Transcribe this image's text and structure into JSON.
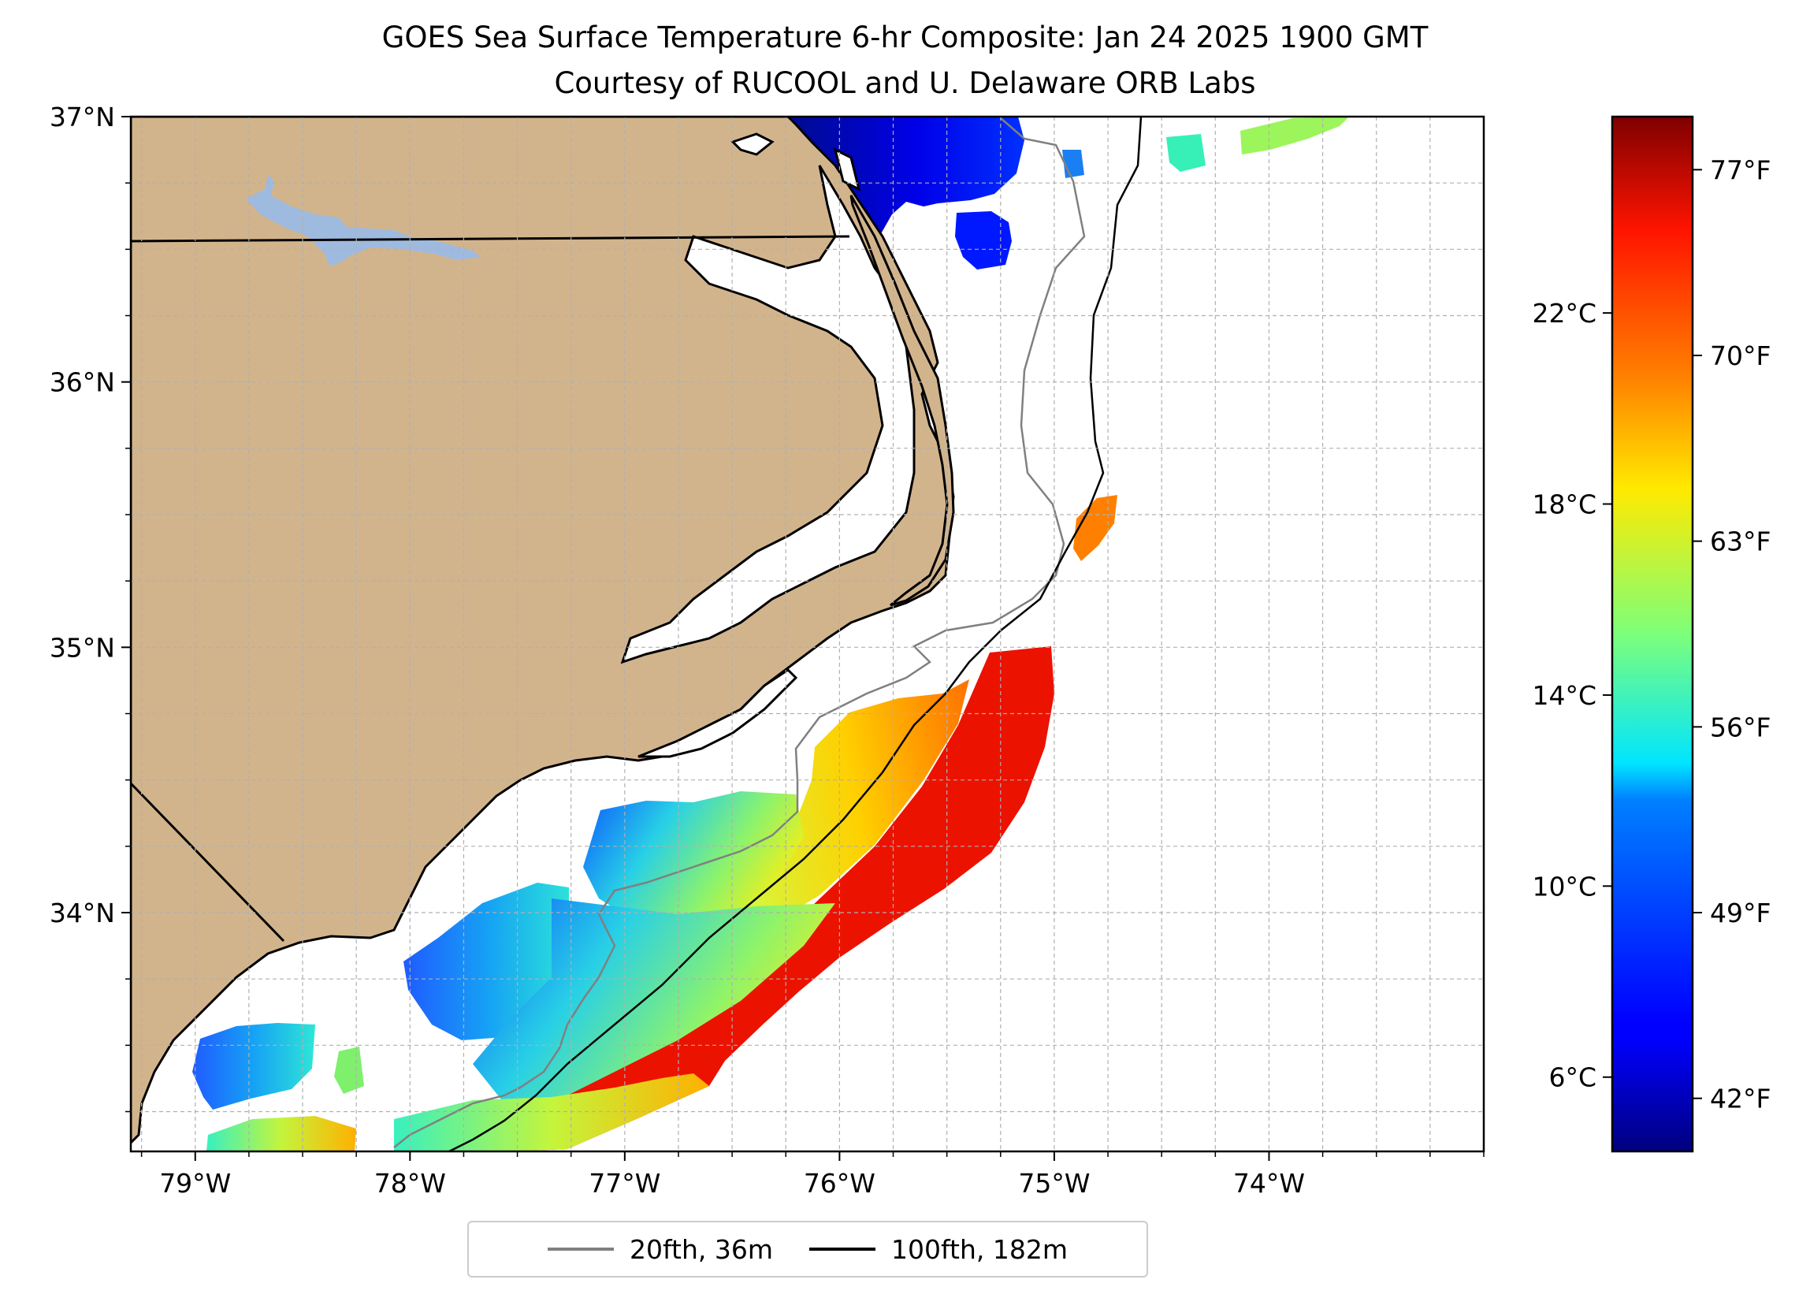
{
  "title": "GOES Sea Surface Temperature 6-hr Composite: Jan 24 2025 1900 GMT",
  "subtitle": "Courtesy of RUCOOL and U. Delaware ORB Labs",
  "colors": {
    "land": "#d2b48c",
    "lake": "#9fbadf",
    "depth20": "#808080",
    "depth100": "#000000",
    "grid": "#b0b0b0"
  },
  "map": {
    "lon_range": [
      -79.3,
      -73.0
    ],
    "lat_range": [
      33.1,
      37.0
    ],
    "lon_ticks": [
      {
        "value": -79,
        "label": "79°W"
      },
      {
        "value": -78,
        "label": "78°W"
      },
      {
        "value": -77,
        "label": "77°W"
      },
      {
        "value": -76,
        "label": "76°W"
      },
      {
        "value": -75,
        "label": "75°W"
      },
      {
        "value": -74,
        "label": "74°W"
      }
    ],
    "lat_ticks": [
      {
        "value": 34,
        "label": "34°N"
      },
      {
        "value": 35,
        "label": "35°N"
      },
      {
        "value": 36,
        "label": "36°N"
      },
      {
        "value": 37,
        "label": "37°N"
      }
    ],
    "grid": true,
    "grid_step_deg": 0.25
  },
  "colorbar": {
    "colormap": "jet",
    "range_f": [
      40,
      79
    ],
    "celsius_ticks": [
      {
        "value_f": 42.8,
        "label": "6°C"
      },
      {
        "value_f": 50.0,
        "label": "10°C"
      },
      {
        "value_f": 57.2,
        "label": "14°C"
      },
      {
        "value_f": 64.4,
        "label": "18°C"
      },
      {
        "value_f": 71.6,
        "label": "22°C"
      }
    ],
    "fahrenheit_ticks": [
      {
        "value_f": 42,
        "label": "42°F"
      },
      {
        "value_f": 49,
        "label": "49°F"
      },
      {
        "value_f": 56,
        "label": "56°F"
      },
      {
        "value_f": 63,
        "label": "63°F"
      },
      {
        "value_f": 70,
        "label": "70°F"
      },
      {
        "value_f": 77,
        "label": "77°F"
      }
    ]
  },
  "legend": {
    "placement": "below map",
    "items": [
      {
        "label": "20fth, 36m",
        "color": "#808080"
      },
      {
        "label": "100fth, 182m",
        "color": "#000000"
      }
    ]
  }
}
